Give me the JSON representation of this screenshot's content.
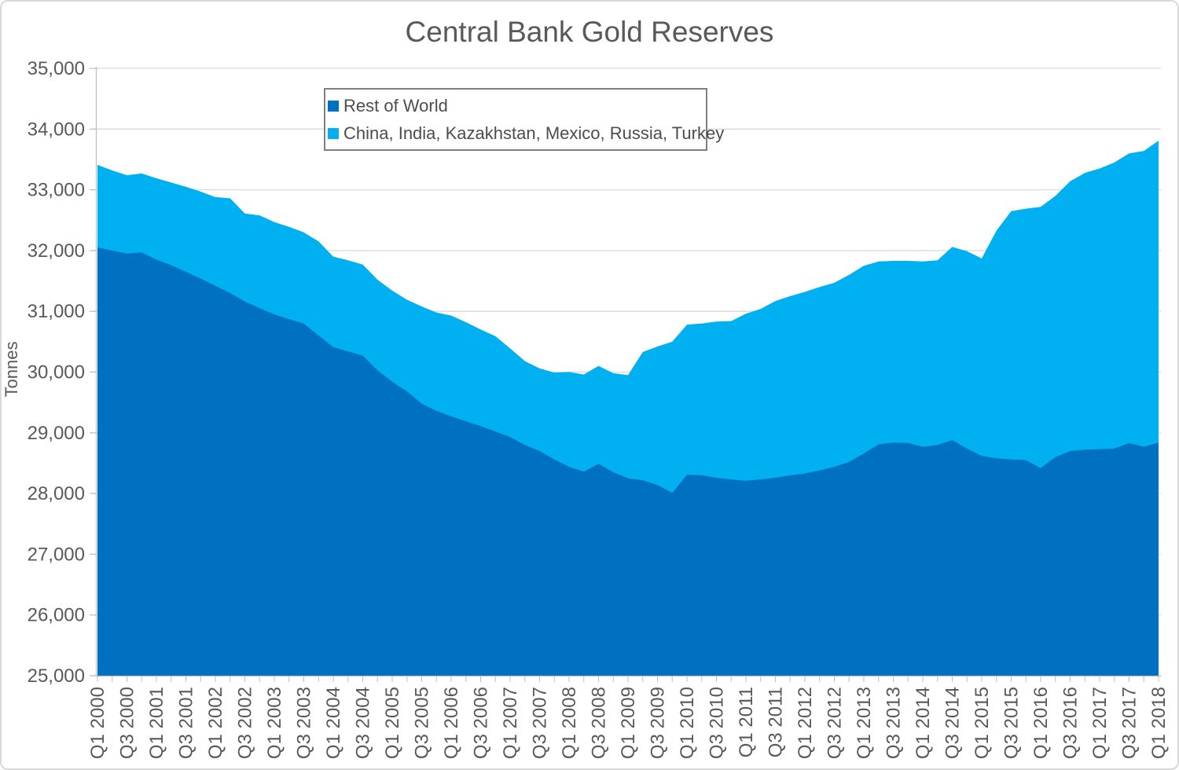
{
  "title": "Central Bank Gold Reserves",
  "colors": {
    "background": "#FFFFFF",
    "frame_border": "#D9D9D9",
    "gridline": "#D9D9D9",
    "axis_line": "#BFBFBF",
    "tick_mark": "#BFBFBF",
    "axis_text": "#595959",
    "title_text": "#595959",
    "legend_text": "#4D4D4D",
    "legend_border": "#7F7F7F"
  },
  "y_axis": {
    "title": "Tonnes",
    "tick_values": [
      25000,
      26000,
      27000,
      28000,
      29000,
      30000,
      31000,
      32000,
      33000,
      34000,
      35000
    ],
    "tick_labels": [
      "25,000",
      "26,000",
      "27,000",
      "28,000",
      "29,000",
      "30,000",
      "31,000",
      "32,000",
      "33,000",
      "34,000",
      "35,000"
    ]
  },
  "x_axis": {
    "tick_labels": [
      "Q1 2000",
      "Q3 2000",
      "Q1 2001",
      "Q3 2001",
      "Q1 2002",
      "Q3 2002",
      "Q1 2003",
      "Q3 2003",
      "Q1 2004",
      "Q3 2004",
      "Q1 2005",
      "Q3 2005",
      "Q1 2006",
      "Q3 2006",
      "Q1 2007",
      "Q3 2007",
      "Q1 2008",
      "Q3 2008",
      "Q1 2009",
      "Q3 2009",
      "Q1 2010",
      "Q3 2010",
      "Q1 2011",
      "Q3 2011",
      "Q1 2012",
      "Q3 2012",
      "Q1 2013",
      "Q3 2013",
      "Q1 2014",
      "Q3 2014",
      "Q1 2015",
      "Q3 2015",
      "Q1 2016",
      "Q3 2016",
      "Q1 2017",
      "Q3 2017",
      "Q1 2018"
    ],
    "label_every": 2
  },
  "chart_data": {
    "type": "area",
    "stacked": true,
    "title": "Central Bank Gold Reserves",
    "xlabel": "",
    "ylabel": "Tonnes",
    "ylim": [
      25000,
      35000
    ],
    "grid": "horizontal",
    "legend_position": "top-inside",
    "x_start": "Q1 2000",
    "x_end": "Q1 2018",
    "x_frequency": "quarterly",
    "x_count": 73,
    "series": [
      {
        "name": "Rest of World",
        "color": "#0070C0",
        "values": [
          32050,
          32000,
          31950,
          31970,
          31850,
          31760,
          31650,
          31540,
          31420,
          31300,
          31160,
          31050,
          30950,
          30870,
          30800,
          30600,
          30410,
          30340,
          30270,
          30030,
          29840,
          29680,
          29480,
          29360,
          29270,
          29190,
          29110,
          29020,
          28930,
          28800,
          28700,
          28560,
          28440,
          28360,
          28490,
          28350,
          28250,
          28220,
          28140,
          28010,
          28310,
          28300,
          28260,
          28230,
          28210,
          28230,
          28260,
          28300,
          28330,
          28380,
          28440,
          28520,
          28660,
          28810,
          28840,
          28830,
          28770,
          28800,
          28880,
          28740,
          28620,
          28580,
          28560,
          28550,
          28420,
          28600,
          28700,
          28720,
          28730,
          28740,
          28830,
          28770,
          28840
        ]
      },
      {
        "name": "China, India, Kazakhstan, Mexico, Russia, Turkey",
        "color": "#00B0F0",
        "values": [
          1360,
          1320,
          1290,
          1300,
          1340,
          1360,
          1400,
          1430,
          1460,
          1560,
          1450,
          1530,
          1520,
          1520,
          1500,
          1550,
          1490,
          1500,
          1500,
          1490,
          1500,
          1510,
          1600,
          1620,
          1660,
          1630,
          1590,
          1570,
          1460,
          1380,
          1360,
          1430,
          1560,
          1600,
          1610,
          1630,
          1700,
          2110,
          2280,
          2490,
          2470,
          2500,
          2570,
          2610,
          2750,
          2810,
          2910,
          2950,
          2990,
          3020,
          3030,
          3080,
          3090,
          3010,
          2990,
          3000,
          3050,
          3040,
          3180,
          3250,
          3250,
          3750,
          4090,
          4140,
          4300,
          4300,
          4440,
          4560,
          4620,
          4710,
          4770,
          4870,
          4970
        ]
      }
    ]
  }
}
